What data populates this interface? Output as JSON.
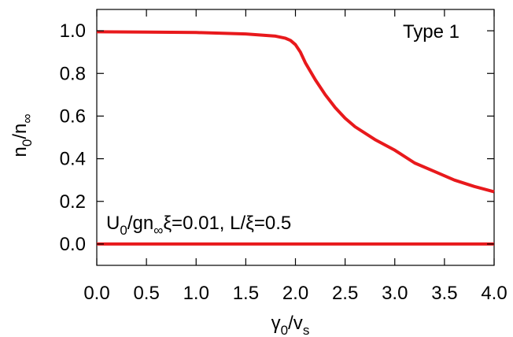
{
  "chart_data": {
    "type": "line",
    "xlim": [
      0.0,
      4.0
    ],
    "ylim": [
      -0.1,
      1.1
    ],
    "x_ticks": [
      0.0,
      0.5,
      1.0,
      1.5,
      2.0,
      2.5,
      3.0,
      3.5,
      4.0
    ],
    "x_tick_labels": [
      "0.0",
      "0.5",
      "1.0",
      "1.5",
      "2.0",
      "2.5",
      "3.0",
      "3.5",
      "4.0"
    ],
    "y_ticks": [
      0.0,
      0.2,
      0.4,
      0.6,
      0.8,
      1.0
    ],
    "y_tick_labels": [
      "0.0",
      "0.2",
      "0.4",
      "0.6",
      "0.8",
      "1.0"
    ],
    "grid": false,
    "xlabel": {
      "main": "γ",
      "sub1": "0",
      "mid": "/v",
      "sub2": "s"
    },
    "ylabel": {
      "main": "n",
      "sub1": "0",
      "mid": "/n",
      "sub2": "∞"
    },
    "corner_label": "Type 1",
    "annotation": {
      "p1": "U",
      "s1": "0",
      "p2": "/gn",
      "s2": "∞",
      "p3": "ξ=0.01, L/ξ=0.5"
    },
    "line_color": "#e8191c",
    "series": [
      {
        "x": [
          0.0,
          0.5,
          1.0,
          1.5,
          1.8,
          1.9,
          1.95,
          2.0,
          2.05,
          2.1,
          2.2,
          2.3,
          2.4,
          2.5,
          2.6,
          2.8,
          3.0,
          3.2,
          3.4,
          3.6,
          3.8,
          4.0
        ],
        "y": [
          0.995,
          0.994,
          0.992,
          0.985,
          0.975,
          0.965,
          0.955,
          0.935,
          0.9,
          0.85,
          0.77,
          0.7,
          0.64,
          0.59,
          0.55,
          0.49,
          0.44,
          0.38,
          0.34,
          0.3,
          0.27,
          0.245
        ]
      },
      {
        "x": [
          0.0,
          4.0
        ],
        "y": [
          0.0,
          0.0
        ]
      }
    ]
  }
}
